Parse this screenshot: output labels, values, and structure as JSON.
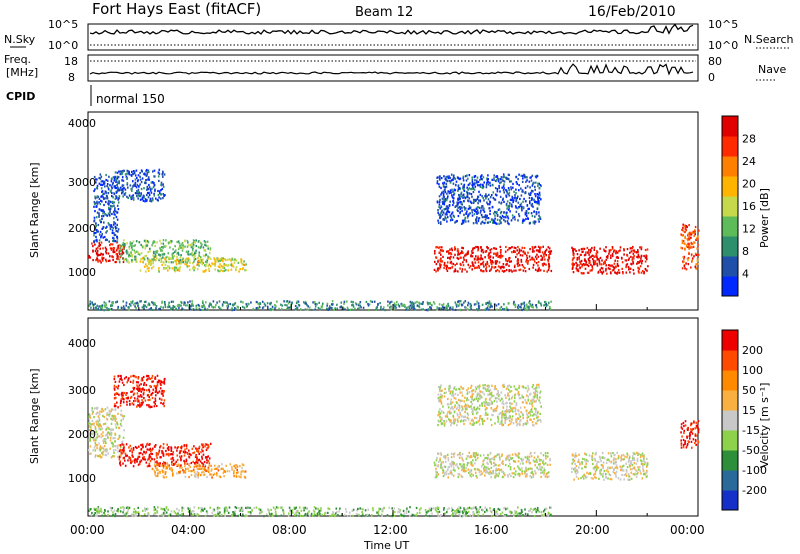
{
  "header": {
    "title": "Fort Hays East (fitACF)",
    "beam": "Beam 12",
    "date": "16/Feb/2010"
  },
  "top_panels": {
    "nsky_label": "N.Sky",
    "nsky_ticks": [
      "10^5",
      "10^0"
    ],
    "nsearch_label": "N.Search",
    "nsearch_ticks": [
      "10^5",
      "10^0"
    ],
    "freq_label_1": "Freq.",
    "freq_label_2": "[MHz]",
    "freq_ticks": [
      "18",
      "8"
    ],
    "nave_label": "Nave",
    "nave_ticks": [
      "80",
      "0"
    ],
    "cpid_label": "CPID",
    "cpid_value": "normal 150"
  },
  "x_axis": {
    "label": "Time UT",
    "ticks": [
      "00:00",
      "04:00",
      "08:00",
      "12:00",
      "16:00",
      "20:00",
      "00:00"
    ]
  },
  "colors": {
    "power_scale": [
      "#0028ff",
      "#1f4fa8",
      "#2e8f6c",
      "#5dbb5a",
      "#c6d94a",
      "#ffb400",
      "#ff7f00",
      "#ff2a00",
      "#e00000"
    ],
    "velocity_scale": [
      "#1530c8",
      "#2a6a9a",
      "#2e8f3a",
      "#8dd24a",
      "#c8c8c8",
      "#f8b040",
      "#ff8a00",
      "#ff4a00",
      "#ee0000"
    ]
  },
  "chart_data": [
    {
      "type": "heatmap",
      "name": "power",
      "xlabel": "Time UT",
      "ylabel": "Slant Range [km]",
      "xlim": [
        0,
        24
      ],
      "ylim": [
        180,
        4550
      ],
      "yticks": [
        "1000",
        "2000",
        "3000",
        "4000"
      ],
      "colorbar_label": "Power [dB]",
      "colorbar_ticks": [
        "4",
        "8",
        "12",
        "16",
        "20",
        "24",
        "28"
      ],
      "colorbar_range": [
        0,
        30
      ],
      "regions": [
        {
          "t0": 0.0,
          "t1": 1.4,
          "r0": 1250,
          "r1": 1700,
          "value": 28
        },
        {
          "t0": 0.2,
          "t1": 1.2,
          "r0": 1700,
          "r1": 3200,
          "value": 4
        },
        {
          "t0": 1.2,
          "t1": 4.8,
          "r0": 1250,
          "r1": 1750,
          "value": 12
        },
        {
          "t0": 2.0,
          "t1": 6.2,
          "r0": 1050,
          "r1": 1350,
          "value": 16
        },
        {
          "t0": 1.0,
          "t1": 3.0,
          "r0": 2600,
          "r1": 3300,
          "value": 4
        },
        {
          "t0": 0.0,
          "t1": 18.2,
          "r0": 200,
          "r1": 400,
          "value": 8
        },
        {
          "t0": 13.7,
          "t1": 17.8,
          "r0": 2100,
          "r1": 3200,
          "value": 4
        },
        {
          "t0": 13.6,
          "t1": 18.2,
          "r0": 1050,
          "r1": 1600,
          "value": 28
        },
        {
          "t0": 19.0,
          "t1": 22.0,
          "r0": 1000,
          "r1": 1600,
          "value": 28
        },
        {
          "t0": 23.3,
          "t1": 24.0,
          "r0": 1100,
          "r1": 2100,
          "value": 24
        }
      ]
    },
    {
      "type": "heatmap",
      "name": "velocity",
      "xlabel": "Time UT",
      "ylabel": "Slant Range [km]",
      "xlim": [
        0,
        24
      ],
      "ylim": [
        180,
        4550
      ],
      "yticks": [
        "1000",
        "2000",
        "3000",
        "4000"
      ],
      "colorbar_label": "Velocity [m s⁻¹]",
      "colorbar_ticks": [
        "200",
        "100",
        "50",
        "15",
        "-15",
        "-50",
        "-100",
        "-200"
      ],
      "colorbar_range": [
        -250,
        250
      ],
      "regions": [
        {
          "t0": 0.0,
          "t1": 1.4,
          "r0": 1500,
          "r1": 2600,
          "value": 0
        },
        {
          "t0": 1.2,
          "t1": 4.8,
          "r0": 1300,
          "r1": 1800,
          "value": 220
        },
        {
          "t0": 2.5,
          "t1": 6.2,
          "r0": 1050,
          "r1": 1350,
          "value": 80
        },
        {
          "t0": 1.0,
          "t1": 3.0,
          "r0": 2600,
          "r1": 3300,
          "value": 220
        },
        {
          "t0": 0.0,
          "t1": 18.2,
          "r0": 200,
          "r1": 400,
          "value": -60
        },
        {
          "t0": 13.7,
          "t1": 17.8,
          "r0": 2200,
          "r1": 3100,
          "value": 0
        },
        {
          "t0": 13.6,
          "t1": 18.2,
          "r0": 1050,
          "r1": 1600,
          "value": 0
        },
        {
          "t0": 19.0,
          "t1": 22.0,
          "r0": 1000,
          "r1": 1600,
          "value": 0
        },
        {
          "t0": 23.3,
          "t1": 24.0,
          "r0": 1700,
          "r1": 2300,
          "value": 220
        }
      ]
    }
  ]
}
